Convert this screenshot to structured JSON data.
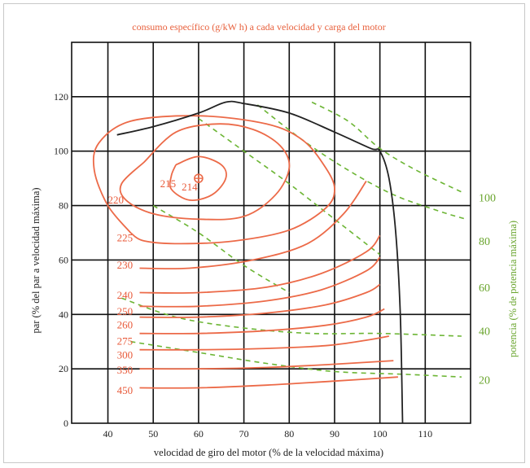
{
  "chart_data": {
    "type": "contour",
    "title": "consumo específico (g/kW h) a cada velocidad y carga del motor",
    "xlabel": "velocidad de giro del motor  (% de la velocidad máxima)",
    "ylabel": "par  (% del par a velocidad máxima)",
    "y2label": "potencia  (% de potencia máxima)",
    "xlim": [
      32,
      120
    ],
    "ylim": [
      0,
      140
    ],
    "x_ticks": [
      40,
      50,
      60,
      70,
      80,
      90,
      100,
      110
    ],
    "y_ticks": [
      0,
      20,
      40,
      60,
      80,
      100,
      120
    ],
    "optimum_point": {
      "x": 60,
      "y": 90,
      "label": "214"
    },
    "contours": [
      {
        "label": "215",
        "points": [
          [
            55,
            95
          ],
          [
            60,
            98
          ],
          [
            65,
            95
          ],
          [
            66,
            90
          ],
          [
            63,
            84
          ],
          [
            58,
            82
          ],
          [
            54,
            86
          ],
          [
            54,
            91
          ],
          [
            55,
            95
          ]
        ]
      },
      {
        "label": "220",
        "points": [
          [
            48,
            96
          ],
          [
            55,
            107
          ],
          [
            64,
            110
          ],
          [
            72,
            108
          ],
          [
            78,
            102
          ],
          [
            80,
            94
          ],
          [
            77,
            84
          ],
          [
            70,
            76
          ],
          [
            60,
            75
          ],
          [
            50,
            77
          ],
          [
            44,
            82
          ],
          [
            43,
            88
          ],
          [
            48,
            96
          ]
        ]
      },
      {
        "label": "225",
        "points": [
          [
            45,
            70
          ],
          [
            48,
            67
          ],
          [
            56,
            66
          ],
          [
            68,
            67
          ],
          [
            80,
            71
          ],
          [
            88,
            79
          ],
          [
            90,
            86
          ],
          [
            88,
            94
          ],
          [
            83,
            104
          ],
          [
            75,
            110
          ],
          [
            60,
            113
          ],
          [
            45,
            111
          ],
          [
            38,
            103
          ],
          [
            37,
            93
          ],
          [
            40,
            80
          ],
          [
            45,
            70
          ]
        ]
      },
      {
        "label": "230",
        "points": [
          [
            47,
            57
          ],
          [
            58,
            57
          ],
          [
            72,
            60
          ],
          [
            84,
            66
          ],
          [
            92,
            77
          ],
          [
            97,
            89
          ]
        ]
      },
      {
        "label": "240",
        "points": [
          [
            47,
            48
          ],
          [
            60,
            48
          ],
          [
            75,
            50
          ],
          [
            87,
            55
          ],
          [
            97,
            63
          ],
          [
            100,
            69
          ]
        ]
      },
      {
        "label": "250",
        "points": [
          [
            47,
            43
          ],
          [
            60,
            43
          ],
          [
            75,
            45
          ],
          [
            87,
            49
          ],
          [
            97,
            56
          ],
          [
            100,
            61
          ]
        ]
      },
      {
        "label": "260",
        "points": [
          [
            47,
            39
          ],
          [
            60,
            39
          ],
          [
            75,
            40.5
          ],
          [
            88,
            43.5
          ],
          [
            97,
            48
          ],
          [
            100,
            51
          ]
        ]
      },
      {
        "label": "275",
        "points": [
          [
            47,
            33
          ],
          [
            60,
            33
          ],
          [
            75,
            34
          ],
          [
            88,
            36
          ],
          [
            97,
            39
          ],
          [
            101,
            42
          ]
        ]
      },
      {
        "label": "300",
        "points": [
          [
            47,
            27
          ],
          [
            60,
            27
          ],
          [
            75,
            27.5
          ],
          [
            88,
            28.5
          ],
          [
            97,
            30.5
          ],
          [
            102,
            32
          ]
        ]
      },
      {
        "label": "350",
        "points": [
          [
            47,
            20
          ],
          [
            60,
            20
          ],
          [
            75,
            20.5
          ],
          [
            88,
            21.5
          ],
          [
            103,
            23
          ]
        ]
      },
      {
        "label": "450",
        "points": [
          [
            47,
            13
          ],
          [
            60,
            13
          ],
          [
            75,
            14
          ],
          [
            90,
            15.5
          ],
          [
            104,
            17
          ]
        ]
      }
    ],
    "max_torque_curve": [
      [
        42,
        106
      ],
      [
        50,
        109
      ],
      [
        60,
        114
      ],
      [
        66,
        118
      ],
      [
        70,
        117.5
      ],
      [
        80,
        114
      ],
      [
        90,
        107
      ],
      [
        98,
        101
      ],
      [
        100,
        100
      ],
      [
        102,
        90
      ],
      [
        103.5,
        70
      ],
      [
        104.5,
        40
      ],
      [
        105,
        0
      ]
    ],
    "iso_power": [
      {
        "label": "100",
        "points": [
          [
            50,
            80
          ],
          [
            60,
            70
          ],
          [
            70,
            58
          ],
          [
            80,
            48
          ]
        ]
      },
      {
        "label": "100",
        "points": [
          [
            60,
            112
          ],
          [
            70,
            100
          ],
          [
            80,
            88
          ],
          [
            90,
            75
          ],
          [
            100,
            62
          ]
        ]
      },
      {
        "label": "100",
        "points": [
          [
            73,
            117
          ],
          [
            83,
            104
          ],
          [
            93,
            93
          ],
          [
            103,
            84
          ],
          [
            113,
            78
          ],
          [
            119,
            75
          ]
        ]
      },
      {
        "label": "100",
        "points": [
          [
            85,
            118
          ],
          [
            93,
            111
          ],
          [
            100,
            101
          ],
          [
            108,
            93
          ],
          [
            118,
            85
          ]
        ]
      },
      {
        "label": "40",
        "points": [
          [
            43,
            46
          ],
          [
            55,
            39
          ],
          [
            70,
            35
          ],
          [
            85,
            33
          ],
          [
            100,
            33
          ],
          [
            118,
            32
          ]
        ]
      },
      {
        "label": "20",
        "points": [
          [
            45,
            30
          ],
          [
            60,
            26
          ],
          [
            75,
            22
          ],
          [
            90,
            19
          ],
          [
            105,
            18
          ],
          [
            118,
            17
          ]
        ]
      }
    ],
    "power_ticks": [
      {
        "y": 83,
        "label": "100"
      },
      {
        "y": 67,
        "label": "80"
      },
      {
        "y": 50,
        "label": "60"
      },
      {
        "y": 34,
        "label": "40"
      },
      {
        "y": 16,
        "label": "20"
      }
    ],
    "grid": true,
    "colors": {
      "contour": "#ec6a48",
      "iso_power": "#6cb534",
      "envelope": "#222222",
      "title": "#e8603c"
    }
  }
}
